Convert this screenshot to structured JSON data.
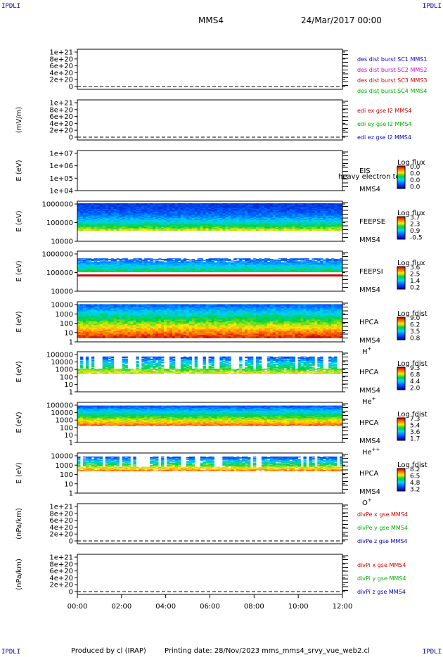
{
  "corner_label": "IPDLI",
  "header": {
    "spacecraft": "MMS4",
    "date": "24/Mar/2017 00:00"
  },
  "footer": {
    "produced": "Produced by cl (IRAP)",
    "printing": "Printing date: 28/Nov/2023",
    "script": "mms_mms4_srvy_vue_web2.cl"
  },
  "colors": {
    "red": "#cc0000",
    "magenta": "#dd00dd",
    "green": "#00b000",
    "blue": "#0000cc"
  },
  "chart_data": {
    "type": "heatmap",
    "xlim": [
      "00:00",
      "12:00"
    ],
    "x_ticks": [
      "00:00",
      "02:00",
      "04:00",
      "06:00",
      "08:00",
      "10:00",
      "12:00"
    ],
    "panels": [
      {
        "id": "des",
        "kind": "line",
        "ylabel": "",
        "yticks": [
          "1e+21",
          "8e+20",
          "6e+20",
          "4e+20",
          "2e+20",
          "0"
        ],
        "zero_line": true,
        "legend": [
          {
            "text": "des dist burst SC1 MMS1",
            "color": "blue"
          },
          {
            "text": "des dist burst SC2 MMS2",
            "color": "magenta"
          },
          {
            "text": "des dist burst SC3 MMS3",
            "color": "red"
          },
          {
            "text": "des dist burst SC4 MMS4",
            "color": "green"
          }
        ]
      },
      {
        "id": "edi",
        "kind": "line",
        "ylabel": "(mV/m)",
        "yticks": [
          "1e+21",
          "8e+20",
          "6e+20",
          "4e+20",
          "2e+20",
          "0"
        ],
        "zero_line": true,
        "legend": [
          {
            "text": "edi ex gse l2 MMS4",
            "color": "red"
          },
          {
            "text": "edi ey gse l2 MMS4",
            "color": "green"
          },
          {
            "text": "edi ez gse l2 MMS4",
            "color": "blue"
          }
        ]
      },
      {
        "id": "eis",
        "kind": "spec",
        "ylabel": "E (eV)",
        "yticks": [
          "1e+07",
          "1e+06",
          "1e+05",
          "1e+04"
        ],
        "fill": "none",
        "instrument": "EIS",
        "sc": "MMS4",
        "species": "",
        "extra": "heavy electron tc",
        "cbar_title": "Log flux",
        "cbar_ticks": [
          "0.0",
          "0.0",
          "0.0",
          "0.0"
        ]
      },
      {
        "id": "feepse",
        "kind": "spec",
        "ylabel": "E (eV)",
        "yticks": [
          "1000000",
          "100000",
          "10000"
        ],
        "fill": "feepse",
        "instrument": "FEEPSE",
        "sc": "MMS4",
        "species": "",
        "cbar_title": "Log flux",
        "cbar_ticks": [
          "3.7",
          "2.3",
          "0.9",
          "-0.5"
        ]
      },
      {
        "id": "feepsi",
        "kind": "spec",
        "ylabel": "E (eV)",
        "yticks": [
          "1000000",
          "100000",
          "10000"
        ],
        "fill": "feepsi",
        "instrument": "FEEPSI",
        "sc": "MMS4",
        "species": "",
        "cbar_title": "Log flux",
        "cbar_ticks": [
          "3.6",
          "2.5",
          "1.4",
          "0.2"
        ]
      },
      {
        "id": "hpca_h",
        "kind": "spec",
        "ylabel": "E (eV)",
        "yticks": [
          "10000",
          "1000",
          "100",
          "10",
          "1"
        ],
        "fill": "hplus",
        "instrument": "HPCA",
        "sc": "MMS4",
        "species": "H",
        "charge": "+",
        "cbar_title": "Log fdist",
        "cbar_ticks": [
          "9.0",
          "6.2",
          "3.5",
          "0.8"
        ]
      },
      {
        "id": "hpca_he",
        "kind": "spec",
        "ylabel": "E (eV)",
        "yticks": [
          "100000",
          "10000",
          "1000",
          "100",
          "10",
          "1"
        ],
        "fill": "heplus",
        "instrument": "HPCA",
        "sc": "MMS4",
        "species": "He",
        "charge": "+",
        "cbar_title": "Log fdist",
        "cbar_ticks": [
          "9.3",
          "6.8",
          "4.4",
          "2.0"
        ]
      },
      {
        "id": "hpca_hepp",
        "kind": "spec",
        "ylabel": "E (eV)",
        "yticks": [
          "100000",
          "10000",
          "1000",
          "100",
          "10",
          "1"
        ],
        "fill": "hepp",
        "instrument": "HPCA",
        "sc": "MMS4",
        "species": "He",
        "charge": "++",
        "cbar_title": "Log fdist",
        "cbar_ticks": [
          "7.3",
          "5.4",
          "3.6",
          "1.7"
        ]
      },
      {
        "id": "hpca_o",
        "kind": "spec",
        "ylabel": "E (eV)",
        "yticks": [
          "10000",
          "1000",
          "100",
          "10",
          "1"
        ],
        "fill": "oplus",
        "instrument": "HPCA",
        "sc": "MMS4",
        "species": "O",
        "charge": "+",
        "cbar_title": "Log fdist",
        "cbar_ticks": [
          "8.2",
          "6.5",
          "4.8",
          "3.2"
        ]
      },
      {
        "id": "divpe",
        "kind": "line",
        "ylabel": "(nPa/km)",
        "yticks": [
          "1e+21",
          "8e+20",
          "6e+20",
          "4e+20",
          "2e+20",
          "0"
        ],
        "zero_line": true,
        "legend": [
          {
            "text": "divPe x gse MMS4",
            "color": "red"
          },
          {
            "text": "divPe y gse MMS4",
            "color": "green"
          },
          {
            "text": "divPe z gse MMS4",
            "color": "blue"
          }
        ]
      },
      {
        "id": "divpi",
        "kind": "line",
        "ylabel": "(nPa/km)",
        "yticks": [
          "1e+21",
          "8e+20",
          "6e+20",
          "4e+20",
          "2e+20",
          "0"
        ],
        "zero_line": true,
        "legend": [
          {
            "text": "divPi x gse MMS4",
            "color": "red"
          },
          {
            "text": "divPi y gse MMS4",
            "color": "green"
          },
          {
            "text": "divPi z gse MMS4",
            "color": "blue"
          }
        ]
      }
    ]
  }
}
